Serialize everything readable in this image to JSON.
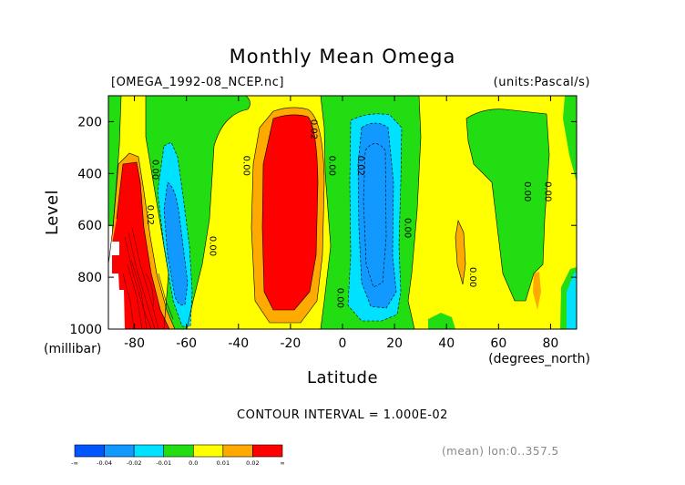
{
  "chart_data": {
    "type": "heatmap",
    "title": "Monthly Mean Omega",
    "file_label": "[OMEGA_1992-08_NCEP.nc]",
    "units_label": "(units:Pascal/s)",
    "xlabel": "Latitude",
    "xunits": "(degrees_north)",
    "ylabel": "Level",
    "yunits": "(millibar)",
    "xlim": [
      -90,
      90
    ],
    "ylim": [
      1000,
      100
    ],
    "xticks": [
      "-80",
      "-60",
      "-40",
      "-20",
      "0",
      "20",
      "40",
      "60",
      "80"
    ],
    "yticks": [
      "200",
      "400",
      "600",
      "800",
      "1000"
    ],
    "contour_interval": "CONTOUR INTERVAL = 1.000E-02",
    "footnote": "(mean) lon:0..357.5",
    "colorbar": {
      "labels": [
        "-∞",
        "-0.04",
        "-0.02",
        "-0.01",
        "0.0",
        "0.01",
        "0.02",
        "∞"
      ],
      "colors": [
        "#0055ff",
        "#1199ff",
        "#00e0ff",
        "#22dd11",
        "#ffff00",
        "#ffaa00",
        "#ff0000"
      ]
    },
    "contour_labels": [
      {
        "text": "0.00",
        "lat": -73,
        "level": 385
      },
      {
        "text": "0.02",
        "lat": -75,
        "level": 560
      },
      {
        "text": "0.00",
        "lat": -51,
        "level": 680
      },
      {
        "text": "0.00",
        "lat": -38,
        "level": 370
      },
      {
        "text": "0.02",
        "lat": -12,
        "level": 230
      },
      {
        "text": "0.00",
        "lat": -5,
        "level": 370
      },
      {
        "text": "0.02",
        "lat": 6,
        "level": 370
      },
      {
        "text": "0.00",
        "lat": 24,
        "level": 610
      },
      {
        "text": "0.00",
        "lat": -2,
        "level": 880
      },
      {
        "text": "0.00",
        "lat": 49,
        "level": 800
      },
      {
        "text": "0.00",
        "lat": 70,
        "level": 470
      },
      {
        "text": "0.00",
        "lat": 78,
        "level": 470
      }
    ]
  }
}
